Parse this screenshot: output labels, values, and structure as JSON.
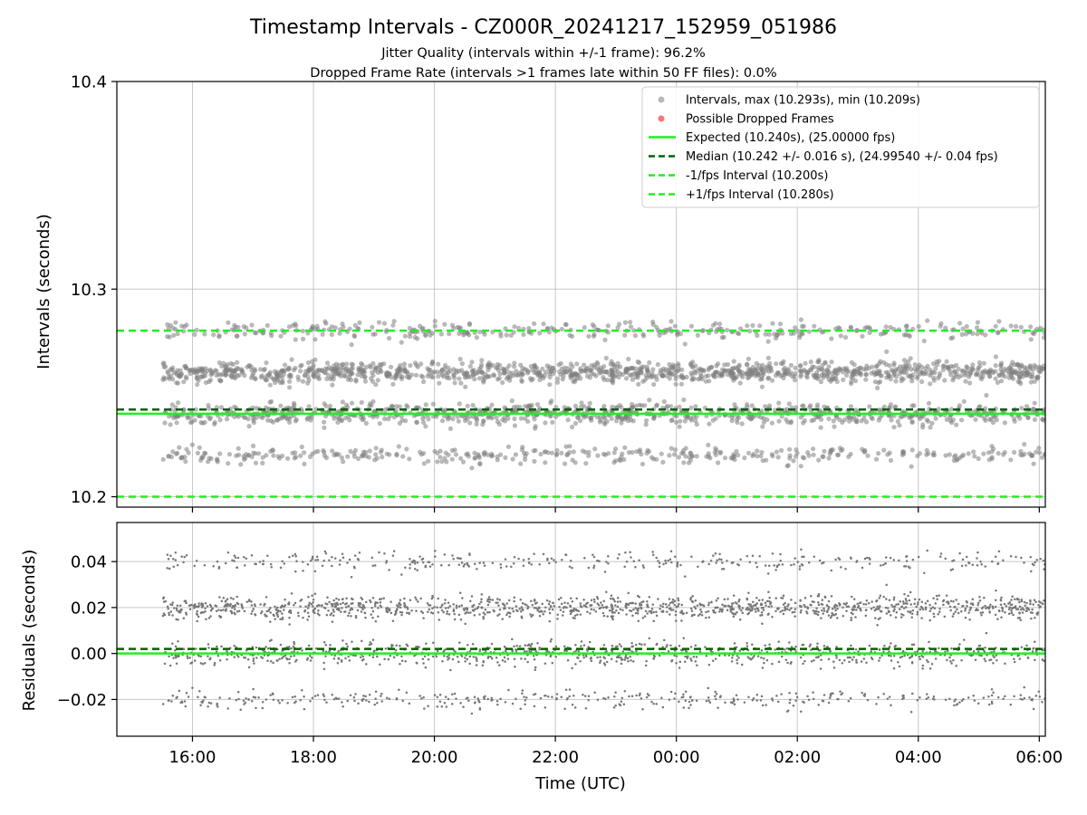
{
  "figure": {
    "title": "Timestamp Intervals - CZ000R_20241217_152959_051986",
    "subtitle_1": "Jitter Quality (intervals within +/-1 frame): 96.2%",
    "subtitle_2": "Dropped Frame Rate (intervals >1 frames late within 50 FF files): 0.0%"
  },
  "chart_data": [
    {
      "type": "scatter",
      "panel": "top",
      "ylabel": "Intervals (seconds)",
      "xlabel": "",
      "ylim": [
        10.195,
        10.4
      ],
      "yticks": [
        "10.2",
        "10.3",
        "10.4"
      ],
      "x_domain_hours": [
        14.75,
        30.1
      ],
      "xticks": [
        "16:00",
        "18:00",
        "20:00",
        "22:00",
        "00:00",
        "02:00",
        "04:00",
        "06:00"
      ],
      "grid": true,
      "legend_position": "top-right",
      "point_color": "#808080",
      "series": [
        {
          "name": "Intervals, max (10.293s), min (10.209s)",
          "kind": "points",
          "color": "#808080",
          "x_range_utc": [
            "2024-12-17T15:30",
            "2024-12-18T06:06"
          ],
          "max": 10.293,
          "min": 10.209,
          "clusters": [
            {
              "value": 10.26,
              "weight": 0.45,
              "spread": 0.0025
            },
            {
              "value": 10.24,
              "weight": 0.3,
              "spread": 0.0025
            },
            {
              "value": 10.22,
              "weight": 0.13,
              "spread": 0.002
            },
            {
              "value": 10.28,
              "weight": 0.12,
              "spread": 0.002
            }
          ]
        },
        {
          "name": "Possible Dropped Frames",
          "kind": "points",
          "color": "#ff6666",
          "count": 0
        },
        {
          "name": "Expected (10.240s), (25.00000 fps)",
          "kind": "hline",
          "value": 10.24,
          "color": "#22ee22",
          "style": "solid"
        },
        {
          "name": "Median (10.242 +/- 0.016 s), (24.99540 +/- 0.04 fps)",
          "kind": "hline",
          "value": 10.242,
          "color": "#006400",
          "style": "dashed"
        },
        {
          "name": "-1/fps Interval (10.200s)",
          "kind": "hline",
          "value": 10.2,
          "color": "#22ee22",
          "style": "dashed"
        },
        {
          "name": "+1/fps Interval (10.280s)",
          "kind": "hline",
          "value": 10.28,
          "color": "#22ee22",
          "style": "dashed"
        }
      ]
    },
    {
      "type": "scatter",
      "panel": "bottom",
      "ylabel": "Residuals (seconds)",
      "xlabel": "Time (UTC)",
      "ylim": [
        -0.036,
        0.057
      ],
      "yticks": [
        "0.04",
        "0.02",
        "0.00",
        "−0.02"
      ],
      "x_domain_hours": [
        14.75,
        30.1
      ],
      "xticks": [
        "16:00",
        "18:00",
        "20:00",
        "22:00",
        "00:00",
        "02:00",
        "04:00",
        "06:00"
      ],
      "grid": true,
      "point_color": "#777777",
      "series": [
        {
          "kind": "points",
          "color": "#777777",
          "clusters": [
            {
              "value": 0.02,
              "weight": 0.45,
              "spread": 0.0025
            },
            {
              "value": 0.0,
              "weight": 0.3,
              "spread": 0.0025
            },
            {
              "value": -0.02,
              "weight": 0.13,
              "spread": 0.002
            },
            {
              "value": 0.04,
              "weight": 0.12,
              "spread": 0.002
            }
          ]
        },
        {
          "kind": "hline",
          "value": 0.0,
          "color": "#22ee22",
          "style": "solid"
        },
        {
          "kind": "hline",
          "value": 0.002,
          "color": "#006400",
          "style": "dashed"
        }
      ]
    }
  ]
}
